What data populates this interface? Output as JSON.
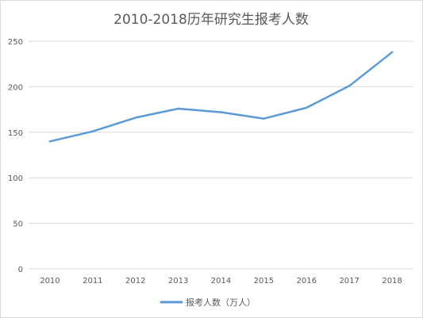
{
  "chart_data": {
    "type": "line",
    "title": "2010-2018历年研究生报考人数",
    "xlabel": "",
    "ylabel": "",
    "categories": [
      "2010",
      "2011",
      "2012",
      "2013",
      "2014",
      "2015",
      "2016",
      "2017",
      "2018"
    ],
    "series": [
      {
        "name": "报考人数（万人）",
        "values": [
          140,
          151,
          166,
          176,
          172,
          165,
          177,
          201,
          238
        ],
        "color": "#5b9bd5"
      }
    ],
    "ylim": [
      0,
      250
    ],
    "yticks": [
      "0",
      "50",
      "100",
      "150",
      "200",
      "250"
    ],
    "grid": true,
    "legend_position": "bottom"
  }
}
